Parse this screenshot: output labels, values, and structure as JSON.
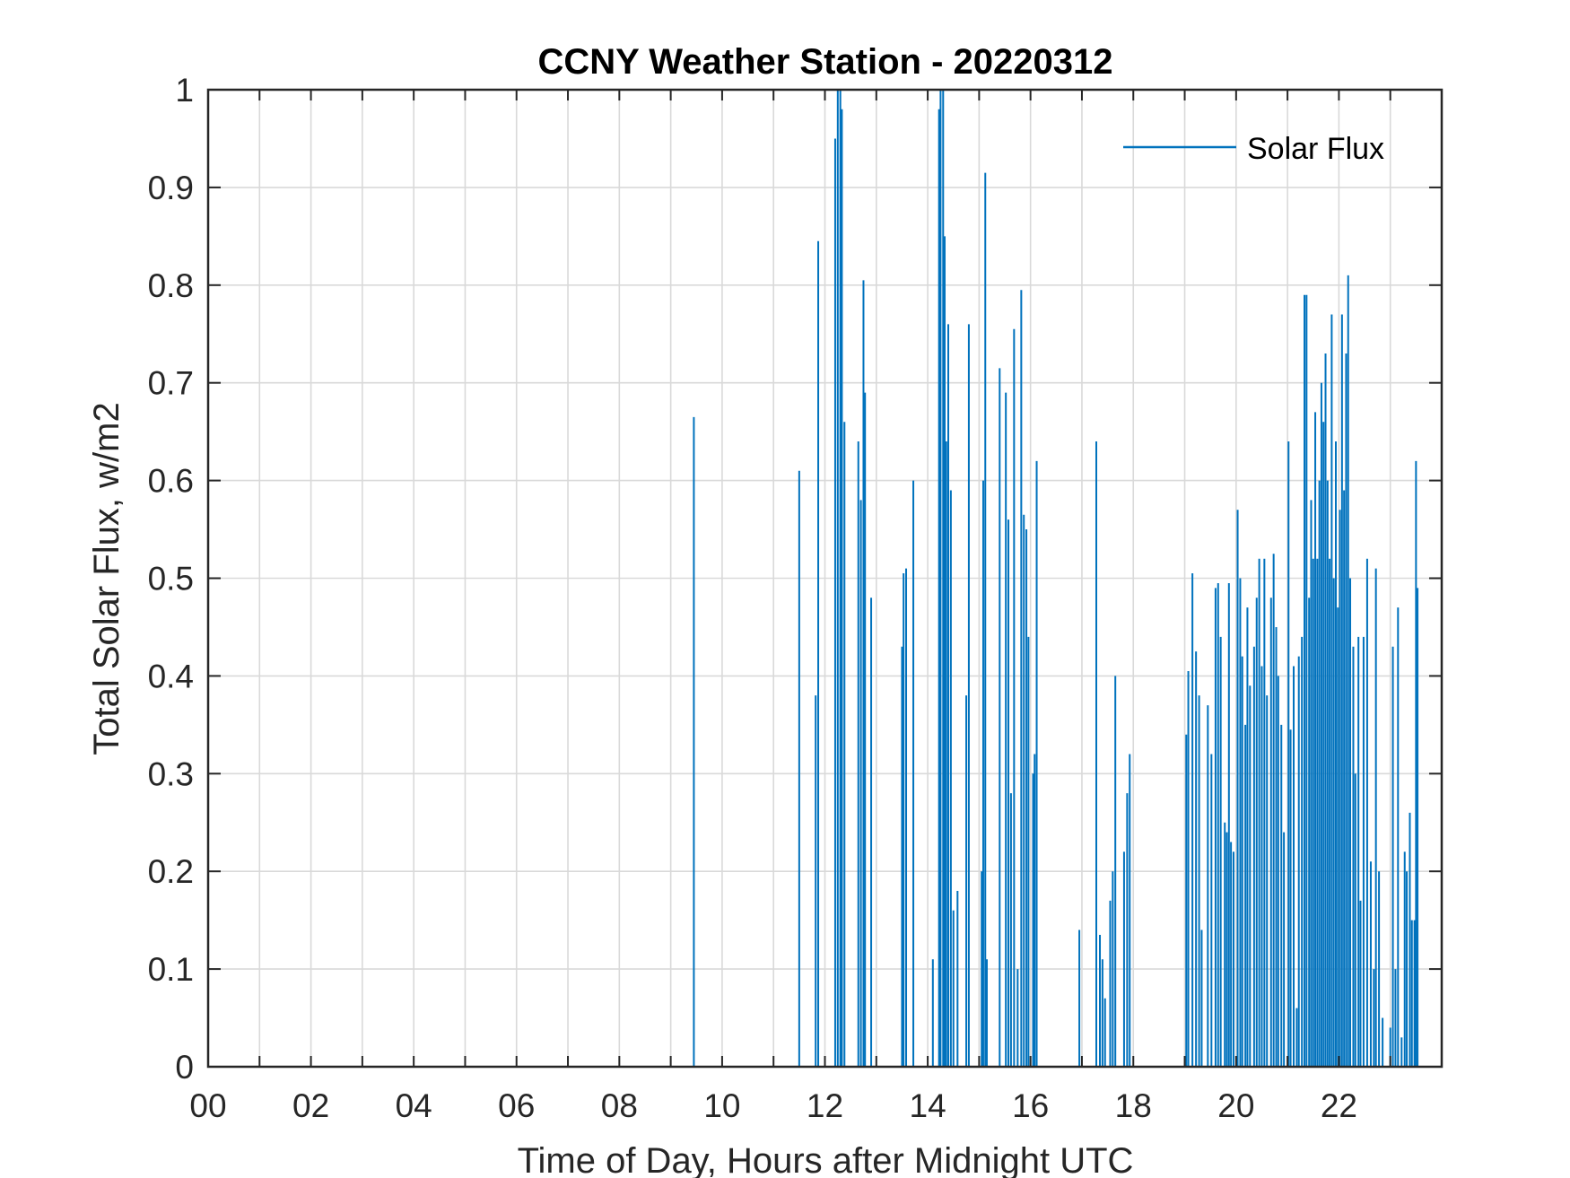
{
  "chart_data": {
    "type": "line",
    "title": "CCNY Weather Station - 20220312",
    "xlabel": "Time of Day, Hours after Midnight UTC",
    "ylabel": "Total Solar Flux, w/m2",
    "xlim": [
      0,
      24
    ],
    "ylim": [
      0,
      1
    ],
    "xticks": [
      0,
      2,
      4,
      6,
      8,
      10,
      12,
      14,
      16,
      18,
      20,
      22
    ],
    "xtick_labels": [
      "00",
      "02",
      "04",
      "06",
      "08",
      "10",
      "12",
      "14",
      "16",
      "18",
      "20",
      "22"
    ],
    "yticks": [
      0,
      0.1,
      0.2,
      0.3,
      0.4,
      0.5,
      0.6,
      0.7,
      0.8,
      0.9,
      1
    ],
    "ytick_labels": [
      "0",
      "0.1",
      "0.2",
      "0.3",
      "0.4",
      "0.5",
      "0.6",
      "0.7",
      "0.8",
      "0.9",
      "1"
    ],
    "grid": true,
    "legend_position": "top-right",
    "series": [
      {
        "name": "Solar Flux",
        "color": "#0072BD",
        "spikes": [
          [
            9.45,
            0.665
          ],
          [
            11.5,
            0.61
          ],
          [
            11.82,
            0.38
          ],
          [
            11.87,
            0.845
          ],
          [
            12.2,
            0.95
          ],
          [
            12.25,
            1.0
          ],
          [
            12.3,
            1.0
          ],
          [
            12.33,
            0.98
          ],
          [
            12.38,
            0.66
          ],
          [
            12.65,
            0.64
          ],
          [
            12.7,
            0.58
          ],
          [
            12.75,
            0.805
          ],
          [
            12.78,
            0.69
          ],
          [
            12.9,
            0.48
          ],
          [
            13.5,
            0.43
          ],
          [
            13.53,
            0.505
          ],
          [
            13.58,
            0.51
          ],
          [
            13.72,
            0.6
          ],
          [
            14.1,
            0.11
          ],
          [
            14.22,
            0.98
          ],
          [
            14.25,
            1.0
          ],
          [
            14.3,
            1.0
          ],
          [
            14.33,
            0.85
          ],
          [
            14.36,
            0.64
          ],
          [
            14.4,
            0.76
          ],
          [
            14.45,
            0.59
          ],
          [
            14.5,
            0.16
          ],
          [
            14.58,
            0.18
          ],
          [
            14.8,
            0.76
          ],
          [
            14.75,
            0.38
          ],
          [
            15.05,
            0.2
          ],
          [
            15.08,
            0.6
          ],
          [
            15.12,
            0.915
          ],
          [
            15.15,
            0.11
          ],
          [
            15.4,
            0.715
          ],
          [
            15.52,
            0.69
          ],
          [
            15.57,
            0.56
          ],
          [
            15.62,
            0.28
          ],
          [
            15.68,
            0.755
          ],
          [
            15.75,
            0.1
          ],
          [
            15.82,
            0.795
          ],
          [
            15.87,
            0.565
          ],
          [
            15.92,
            0.55
          ],
          [
            15.96,
            0.44
          ],
          [
            16.05,
            0.3
          ],
          [
            16.08,
            0.32
          ],
          [
            16.12,
            0.62
          ],
          [
            16.95,
            0.14
          ],
          [
            17.28,
            0.64
          ],
          [
            17.35,
            0.135
          ],
          [
            17.4,
            0.11
          ],
          [
            17.45,
            0.07
          ],
          [
            17.55,
            0.17
          ],
          [
            17.6,
            0.2
          ],
          [
            17.65,
            0.4
          ],
          [
            17.82,
            0.22
          ],
          [
            17.88,
            0.28
          ],
          [
            17.93,
            0.32
          ],
          [
            19.03,
            0.34
          ],
          [
            19.07,
            0.405
          ],
          [
            19.15,
            0.505
          ],
          [
            19.22,
            0.425
          ],
          [
            19.28,
            0.38
          ],
          [
            19.33,
            0.14
          ],
          [
            19.45,
            0.37
          ],
          [
            19.52,
            0.32
          ],
          [
            19.6,
            0.49
          ],
          [
            19.65,
            0.495
          ],
          [
            19.7,
            0.44
          ],
          [
            19.78,
            0.25
          ],
          [
            19.82,
            0.24
          ],
          [
            19.86,
            0.495
          ],
          [
            19.9,
            0.23
          ],
          [
            19.95,
            0.22
          ],
          [
            20.03,
            0.57
          ],
          [
            20.08,
            0.5
          ],
          [
            20.12,
            0.42
          ],
          [
            20.18,
            0.35
          ],
          [
            20.22,
            0.47
          ],
          [
            20.27,
            0.39
          ],
          [
            20.35,
            0.43
          ],
          [
            20.4,
            0.48
          ],
          [
            20.45,
            0.52
          ],
          [
            20.5,
            0.41
          ],
          [
            20.55,
            0.52
          ],
          [
            20.6,
            0.38
          ],
          [
            20.68,
            0.48
          ],
          [
            20.73,
            0.525
          ],
          [
            20.78,
            0.45
          ],
          [
            20.82,
            0.4
          ],
          [
            20.88,
            0.35
          ],
          [
            20.93,
            0.24
          ],
          [
            21.02,
            0.64
          ],
          [
            21.06,
            0.345
          ],
          [
            21.12,
            0.41
          ],
          [
            21.18,
            0.06
          ],
          [
            21.22,
            0.42
          ],
          [
            21.28,
            0.44
          ],
          [
            21.33,
            0.79
          ],
          [
            21.37,
            0.79
          ],
          [
            21.42,
            0.48
          ],
          [
            21.46,
            0.58
          ],
          [
            21.5,
            0.52
          ],
          [
            21.54,
            0.67
          ],
          [
            21.58,
            0.52
          ],
          [
            21.62,
            0.6
          ],
          [
            21.66,
            0.7
          ],
          [
            21.7,
            0.66
          ],
          [
            21.74,
            0.73
          ],
          [
            21.78,
            0.6
          ],
          [
            21.82,
            0.52
          ],
          [
            21.86,
            0.77
          ],
          [
            21.9,
            0.5
          ],
          [
            21.94,
            0.64
          ],
          [
            21.98,
            0.47
          ],
          [
            22.02,
            0.57
          ],
          [
            22.06,
            0.77
          ],
          [
            22.1,
            0.59
          ],
          [
            22.14,
            0.73
          ],
          [
            22.18,
            0.81
          ],
          [
            22.22,
            0.5
          ],
          [
            22.28,
            0.43
          ],
          [
            22.32,
            0.3
          ],
          [
            22.38,
            0.44
          ],
          [
            22.42,
            0.17
          ],
          [
            22.48,
            0.44
          ],
          [
            22.55,
            0.52
          ],
          [
            22.62,
            0.21
          ],
          [
            22.68,
            0.1
          ],
          [
            22.72,
            0.51
          ],
          [
            22.78,
            0.2
          ],
          [
            22.85,
            0.05
          ],
          [
            23.0,
            0.04
          ],
          [
            23.05,
            0.43
          ],
          [
            23.1,
            0.1
          ],
          [
            23.15,
            0.47
          ],
          [
            23.22,
            0.03
          ],
          [
            23.28,
            0.22
          ],
          [
            23.32,
            0.2
          ],
          [
            23.38,
            0.26
          ],
          [
            23.42,
            0.15
          ],
          [
            23.47,
            0.15
          ],
          [
            23.5,
            0.62
          ],
          [
            23.53,
            0.49
          ]
        ]
      }
    ]
  }
}
